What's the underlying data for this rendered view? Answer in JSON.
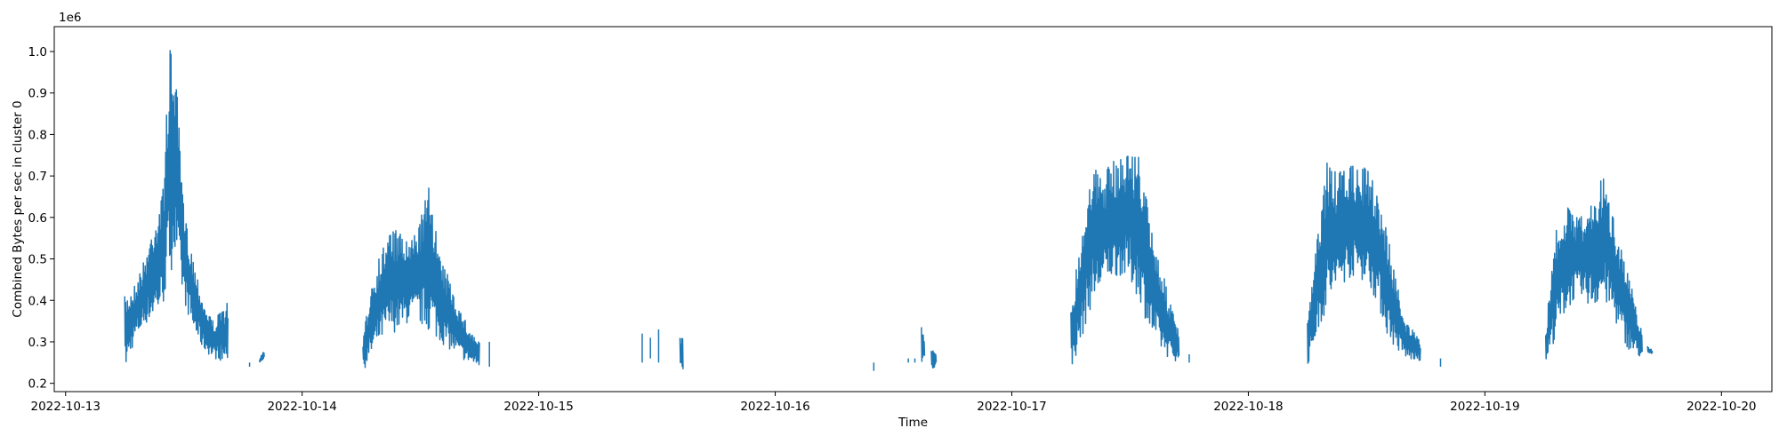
{
  "chart_data": {
    "type": "line",
    "xlabel": "Time",
    "ylabel": "Combined Bytes per sec in cluster 0",
    "y_offset_label": "1e6",
    "xlim": [
      "2022-10-12 22:51",
      "2022-10-20 05:07"
    ],
    "ylim": [
      0.18,
      1.06
    ],
    "x_tick_labels": [
      "2022-10-13",
      "2022-10-14",
      "2022-10-15",
      "2022-10-16",
      "2022-10-17",
      "2022-10-18",
      "2022-10-19",
      "2022-10-20"
    ],
    "y_tick_labels": [
      "0.2",
      "0.3",
      "0.4",
      "0.5",
      "0.6",
      "0.7",
      "0.8",
      "0.9",
      "1.0"
    ],
    "grid": false,
    "color": "#1f77b4",
    "series": [
      {
        "segments": [
          {
            "x": [
              "2022-10-13 06:00",
              "2022-10-13 07:00",
              "2022-10-13 08:00",
              "2022-10-13 09:00",
              "2022-10-13 09:50",
              "2022-10-13 10:30",
              "2022-10-13 11:00",
              "2022-10-13 12:00",
              "2022-10-13 13:00",
              "2022-10-13 14:00",
              "2022-10-13 15:00",
              "2022-10-13 16:30"
            ],
            "low": [
              0.23,
              0.3,
              0.34,
              0.36,
              0.38,
              0.45,
              0.5,
              0.4,
              0.32,
              0.28,
              0.26,
              0.25
            ],
            "high": [
              0.41,
              0.44,
              0.5,
              0.6,
              0.66,
              1.0,
              1.02,
              0.62,
              0.5,
              0.4,
              0.35,
              0.4
            ]
          },
          {
            "x": [
              "2022-10-13 18:40",
              "2022-10-13 18:50"
            ],
            "low": [
              0.24,
              0.24
            ],
            "high": [
              0.25,
              0.25
            ]
          },
          {
            "x": [
              "2022-10-13 19:40",
              "2022-10-13 20:10"
            ],
            "low": [
              0.25,
              0.26
            ],
            "high": [
              0.26,
              0.28
            ]
          },
          {
            "x": [
              "2022-10-14 06:10",
              "2022-10-14 07:00",
              "2022-10-14 08:00",
              "2022-10-14 09:00",
              "2022-10-14 10:00",
              "2022-10-14 11:00",
              "2022-10-14 12:00",
              "2022-10-14 13:00",
              "2022-10-14 14:00",
              "2022-10-14 15:00",
              "2022-10-14 16:00",
              "2022-10-14 17:00",
              "2022-10-14 18:00"
            ],
            "low": [
              0.23,
              0.26,
              0.3,
              0.32,
              0.33,
              0.35,
              0.34,
              0.32,
              0.3,
              0.28,
              0.26,
              0.25,
              0.24
            ],
            "high": [
              0.3,
              0.45,
              0.52,
              0.58,
              0.56,
              0.54,
              0.6,
              0.69,
              0.5,
              0.45,
              0.38,
              0.33,
              0.3
            ]
          },
          {
            "x": [
              "2022-10-14 19:00",
              "2022-10-14 19:08"
            ],
            "low": [
              0.24,
              0.24
            ],
            "high": [
              0.3,
              0.3
            ]
          },
          {
            "x": [
              "2022-10-15 10:30",
              "2022-10-15 10:36"
            ],
            "low": [
              0.25,
              0.25
            ],
            "high": [
              0.32,
              0.32
            ]
          },
          {
            "x": [
              "2022-10-15 11:20",
              "2022-10-15 11:26"
            ],
            "low": [
              0.26,
              0.26
            ],
            "high": [
              0.31,
              0.31
            ]
          },
          {
            "x": [
              "2022-10-15 12:10",
              "2022-10-15 12:16"
            ],
            "low": [
              0.25,
              0.25
            ],
            "high": [
              0.33,
              0.33
            ]
          },
          {
            "x": [
              "2022-10-15 14:20",
              "2022-10-15 14:40"
            ],
            "low": [
              0.23,
              0.23
            ],
            "high": [
              0.32,
              0.32
            ]
          },
          {
            "x": [
              "2022-10-16 10:00",
              "2022-10-16 10:06"
            ],
            "low": [
              0.23,
              0.23
            ],
            "high": [
              0.25,
              0.25
            ]
          },
          {
            "x": [
              "2022-10-16 13:30",
              "2022-10-16 13:36"
            ],
            "low": [
              0.25,
              0.25
            ],
            "high": [
              0.26,
              0.26
            ]
          },
          {
            "x": [
              "2022-10-16 14:10",
              "2022-10-16 14:16"
            ],
            "low": [
              0.25,
              0.25
            ],
            "high": [
              0.26,
              0.26
            ]
          },
          {
            "x": [
              "2022-10-16 14:50",
              "2022-10-16 15:10"
            ],
            "low": [
              0.25,
              0.26
            ],
            "high": [
              0.34,
              0.3
            ]
          },
          {
            "x": [
              "2022-10-16 15:50",
              "2022-10-16 16:20"
            ],
            "low": [
              0.23,
              0.24
            ],
            "high": [
              0.28,
              0.28
            ]
          },
          {
            "x": [
              "2022-10-17 06:00",
              "2022-10-17 07:00",
              "2022-10-17 08:00",
              "2022-10-17 09:00",
              "2022-10-17 10:00",
              "2022-10-17 11:00",
              "2022-10-17 12:00",
              "2022-10-17 13:00",
              "2022-10-17 14:00",
              "2022-10-17 15:00",
              "2022-10-17 16:00",
              "2022-10-17 17:00"
            ],
            "low": [
              0.23,
              0.3,
              0.38,
              0.42,
              0.45,
              0.46,
              0.44,
              0.4,
              0.32,
              0.28,
              0.26,
              0.25
            ],
            "high": [
              0.4,
              0.55,
              0.74,
              0.7,
              0.73,
              0.75,
              0.77,
              0.75,
              0.6,
              0.5,
              0.4,
              0.32
            ]
          },
          {
            "x": [
              "2022-10-17 18:00",
              "2022-10-17 18:10"
            ],
            "low": [
              0.25,
              0.25
            ],
            "high": [
              0.27,
              0.27
            ]
          },
          {
            "x": [
              "2022-10-18 06:00",
              "2022-10-18 07:00",
              "2022-10-18 08:00",
              "2022-10-18 09:00",
              "2022-10-18 10:00",
              "2022-10-18 11:00",
              "2022-10-18 12:00",
              "2022-10-18 13:00",
              "2022-10-18 14:00",
              "2022-10-18 15:00",
              "2022-10-18 16:00",
              "2022-10-18 17:30"
            ],
            "low": [
              0.24,
              0.32,
              0.38,
              0.42,
              0.45,
              0.46,
              0.44,
              0.4,
              0.32,
              0.28,
              0.26,
              0.25
            ],
            "high": [
              0.35,
              0.55,
              0.75,
              0.7,
              0.73,
              0.72,
              0.72,
              0.68,
              0.58,
              0.45,
              0.35,
              0.3
            ]
          },
          {
            "x": [
              "2022-10-18 19:30",
              "2022-10-18 19:36"
            ],
            "low": [
              0.24,
              0.24
            ],
            "high": [
              0.26,
              0.26
            ]
          },
          {
            "x": [
              "2022-10-19 06:10",
              "2022-10-19 07:00",
              "2022-10-19 08:00",
              "2022-10-19 09:00",
              "2022-10-19 10:00",
              "2022-10-19 11:00",
              "2022-10-19 12:00",
              "2022-10-19 13:00",
              "2022-10-19 14:00",
              "2022-10-19 15:00",
              "2022-10-19 16:00"
            ],
            "low": [
              0.25,
              0.3,
              0.36,
              0.4,
              0.4,
              0.38,
              0.4,
              0.36,
              0.3,
              0.27,
              0.26
            ],
            "high": [
              0.32,
              0.55,
              0.63,
              0.62,
              0.6,
              0.65,
              0.7,
              0.62,
              0.52,
              0.42,
              0.32
            ]
          },
          {
            "x": [
              "2022-10-19 16:30",
              "2022-10-19 17:00"
            ],
            "low": [
              0.27,
              0.27
            ],
            "high": [
              0.29,
              0.28
            ]
          }
        ]
      }
    ]
  }
}
